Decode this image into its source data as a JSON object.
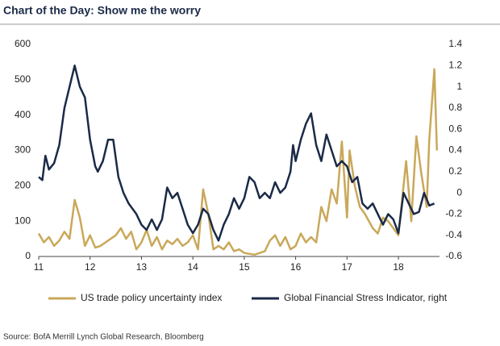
{
  "chart_data": {
    "type": "line",
    "title": "Chart of the Day: Show me the worry",
    "source": "Source: BofA Merrill Lynch Global Research, Bloomberg",
    "xlim": [
      11,
      18.8
    ],
    "xticks": [
      11,
      12,
      13,
      14,
      15,
      16,
      17,
      18
    ],
    "ylim": [
      0,
      600
    ],
    "yticks": [
      0,
      100,
      200,
      300,
      400,
      500,
      600
    ],
    "y2lim": [
      -0.6,
      1.4
    ],
    "y2ticks": [
      -0.6,
      -0.4,
      -0.2,
      0,
      0.2,
      0.4,
      0.6,
      0.8,
      1,
      1.2,
      1.4
    ],
    "legend": "bottom",
    "series": [
      {
        "name": "US trade policy uncertainty index",
        "color": "#c9a85a",
        "x": [
          11.0,
          11.1,
          11.2,
          11.3,
          11.4,
          11.5,
          11.6,
          11.7,
          11.8,
          11.9,
          12.0,
          12.1,
          12.2,
          12.3,
          12.5,
          12.6,
          12.7,
          12.8,
          12.9,
          13.0,
          13.1,
          13.2,
          13.3,
          13.4,
          13.5,
          13.6,
          13.7,
          13.8,
          13.9,
          14.0,
          14.1,
          14.2,
          14.3,
          14.4,
          14.5,
          14.6,
          14.7,
          14.8,
          14.9,
          15.0,
          15.2,
          15.4,
          15.5,
          15.6,
          15.7,
          15.8,
          15.9,
          16.0,
          16.1,
          16.2,
          16.3,
          16.4,
          16.5,
          16.6,
          16.7,
          16.8,
          16.9,
          17.0,
          17.05,
          17.15,
          17.25,
          17.35,
          17.5,
          17.6,
          17.7,
          17.8,
          17.9,
          18.0,
          18.05,
          18.15,
          18.25,
          18.35,
          18.45,
          18.55,
          18.6,
          18.7,
          18.75
        ],
        "values": [
          65,
          40,
          55,
          30,
          45,
          70,
          50,
          160,
          110,
          30,
          60,
          25,
          30,
          40,
          60,
          80,
          50,
          70,
          20,
          40,
          75,
          30,
          55,
          20,
          45,
          35,
          50,
          30,
          40,
          60,
          20,
          190,
          120,
          20,
          30,
          20,
          40,
          15,
          20,
          10,
          5,
          15,
          45,
          60,
          30,
          55,
          20,
          30,
          65,
          40,
          55,
          40,
          140,
          100,
          190,
          150,
          325,
          110,
          300,
          200,
          140,
          120,
          80,
          65,
          110,
          100,
          80,
          60,
          130,
          270,
          100,
          340,
          230,
          140,
          330,
          530,
          300
        ]
      },
      {
        "name": "Global Financial Stress Indicator, right",
        "color": "#1b2a47",
        "axis": "y2",
        "x": [
          11.0,
          11.07,
          11.13,
          11.2,
          11.3,
          11.4,
          11.5,
          11.7,
          11.8,
          11.9,
          12.0,
          12.1,
          12.15,
          12.25,
          12.35,
          12.45,
          12.55,
          12.65,
          12.75,
          12.9,
          13.0,
          13.1,
          13.2,
          13.3,
          13.4,
          13.5,
          13.6,
          13.7,
          13.8,
          13.9,
          14.0,
          14.1,
          14.2,
          14.3,
          14.4,
          14.5,
          14.6,
          14.7,
          14.8,
          14.9,
          15.0,
          15.1,
          15.2,
          15.3,
          15.4,
          15.5,
          15.6,
          15.7,
          15.8,
          15.9,
          15.95,
          16.0,
          16.1,
          16.2,
          16.3,
          16.4,
          16.5,
          16.6,
          16.7,
          16.8,
          16.9,
          17.0,
          17.1,
          17.2,
          17.3,
          17.4,
          17.5,
          17.6,
          17.7,
          17.8,
          17.9,
          18.0,
          18.1,
          18.2,
          18.3,
          18.4,
          18.5,
          18.6,
          18.7
        ],
        "values": [
          0.15,
          0.12,
          0.35,
          0.22,
          0.28,
          0.45,
          0.8,
          1.2,
          1.0,
          0.9,
          0.5,
          0.25,
          0.2,
          0.3,
          0.5,
          0.5,
          0.15,
          0.0,
          -0.1,
          -0.2,
          -0.3,
          -0.35,
          -0.25,
          -0.35,
          -0.25,
          0.05,
          -0.05,
          0.0,
          -0.15,
          -0.3,
          -0.38,
          -0.3,
          -0.15,
          -0.2,
          -0.35,
          -0.45,
          -0.3,
          -0.2,
          -0.05,
          -0.15,
          -0.05,
          0.15,
          0.1,
          -0.05,
          0.0,
          -0.05,
          0.1,
          0.0,
          0.05,
          0.2,
          0.45,
          0.3,
          0.5,
          0.65,
          0.75,
          0.45,
          0.3,
          0.55,
          0.4,
          0.25,
          0.3,
          0.25,
          0.1,
          0.15,
          -0.1,
          -0.15,
          -0.1,
          -0.2,
          -0.3,
          -0.2,
          -0.25,
          -0.38,
          0.0,
          -0.1,
          -0.2,
          -0.18,
          0.0,
          -0.12,
          -0.1
        ]
      }
    ]
  }
}
